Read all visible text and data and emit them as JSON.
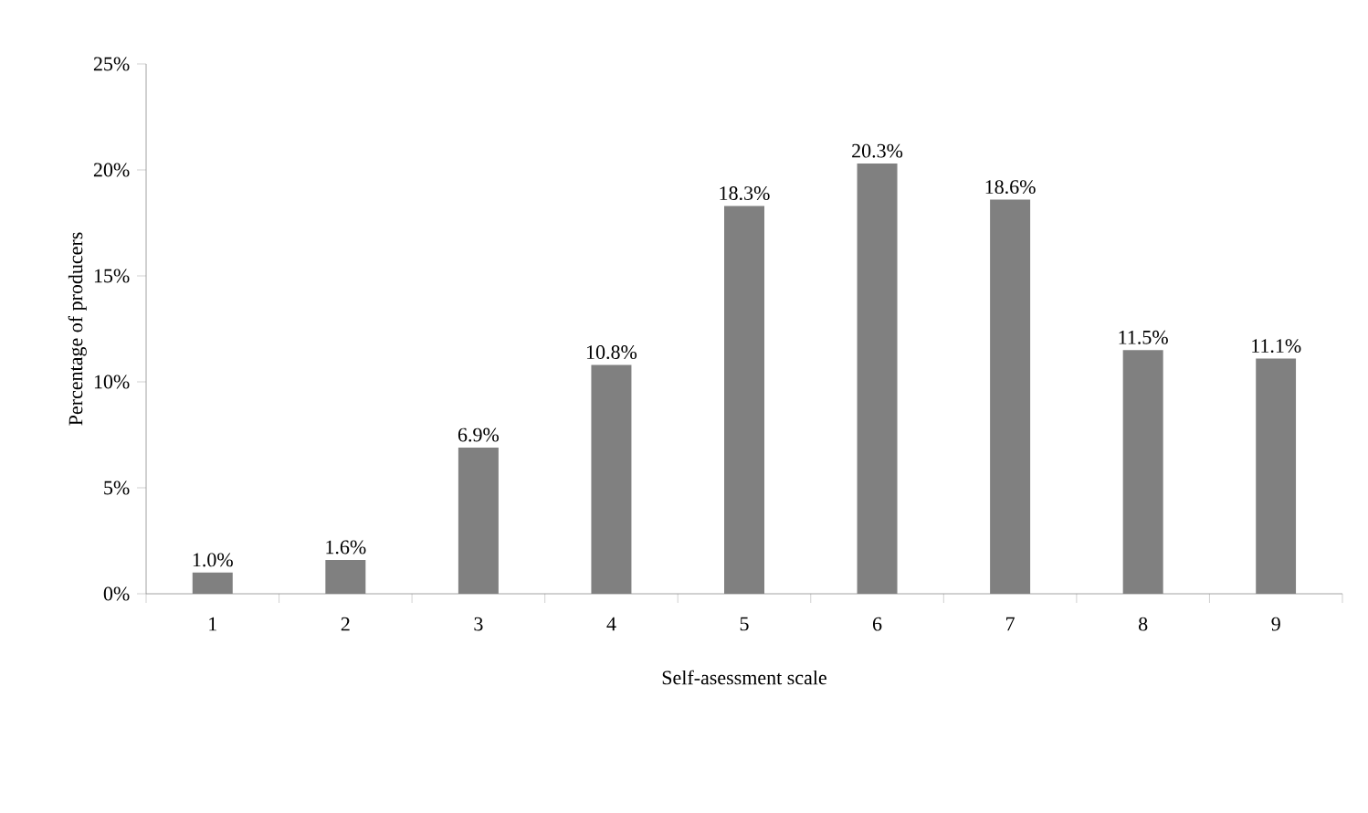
{
  "chart_data": {
    "type": "bar",
    "xlabel": "Self-asessment scale",
    "ylabel": "Percentage of producers",
    "categories": [
      "1",
      "2",
      "3",
      "4",
      "5",
      "6",
      "7",
      "8",
      "9"
    ],
    "values": [
      1.0,
      1.6,
      6.9,
      10.8,
      18.3,
      20.3,
      18.6,
      11.5,
      11.1
    ],
    "value_labels": [
      "1.0%",
      "1.6%",
      "6.9%",
      "10.8%",
      "18.3%",
      "20.3%",
      "18.6%",
      "11.5%",
      "11.1%"
    ],
    "color": "#808080",
    "ylim": [
      0,
      25
    ],
    "yticks": [
      {
        "value": 0,
        "label": "0%"
      },
      {
        "value": 5,
        "label": "5%"
      },
      {
        "value": 10,
        "label": "10%"
      },
      {
        "value": 15,
        "label": "15%"
      },
      {
        "value": 20,
        "label": "20%"
      },
      {
        "value": 25,
        "label": "25%"
      }
    ],
    "grid": false
  }
}
